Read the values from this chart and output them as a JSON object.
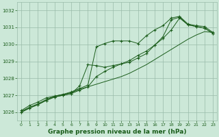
{
  "background_color": "#cce8d8",
  "plot_bg_color": "#cce8d8",
  "grid_color": "#99bbaa",
  "line_color": "#1a5c1a",
  "marker_color": "#1a5c1a",
  "xlabel": "Graphe pression niveau de la mer (hPa)",
  "xlabel_fontsize": 6.5,
  "xlabel_color": "#1a5c1a",
  "xlim": [
    -0.5,
    23.5
  ],
  "ylim": [
    1025.5,
    1032.5
  ],
  "yticks": [
    1026,
    1027,
    1028,
    1029,
    1030,
    1031,
    1032
  ],
  "xticks": [
    0,
    1,
    2,
    3,
    4,
    5,
    6,
    7,
    8,
    9,
    10,
    11,
    12,
    13,
    14,
    15,
    16,
    17,
    18,
    19,
    20,
    21,
    22,
    23
  ],
  "series": [
    {
      "y": [
        1026.1,
        1026.4,
        1026.6,
        1026.85,
        1026.95,
        1027.05,
        1027.2,
        1027.4,
        1027.6,
        1029.85,
        1030.05,
        1030.2,
        1030.2,
        1030.2,
        1030.05,
        1030.5,
        1030.85,
        1031.1,
        1031.55,
        1031.65,
        1031.2,
        1031.1,
        1031.05,
        1030.7
      ],
      "has_markers": true
    },
    {
      "y": [
        1026.05,
        1026.3,
        1026.5,
        1026.75,
        1026.95,
        1027.05,
        1027.15,
        1027.35,
        1027.5,
        1027.65,
        1027.8,
        1027.95,
        1028.1,
        1028.3,
        1028.55,
        1028.8,
        1029.1,
        1029.4,
        1029.7,
        1030.0,
        1030.3,
        1030.55,
        1030.75,
        1030.7
      ],
      "has_markers": false
    },
    {
      "y": [
        1026.0,
        1026.25,
        1026.45,
        1026.7,
        1026.9,
        1027.0,
        1027.1,
        1027.55,
        1028.8,
        1028.75,
        1028.65,
        1028.75,
        1028.85,
        1028.95,
        1029.2,
        1029.45,
        1029.95,
        1030.45,
        1031.45,
        1031.6,
        1031.15,
        1031.05,
        1030.95,
        1030.65
      ],
      "has_markers": true
    },
    {
      "y": [
        1026.0,
        1026.25,
        1026.45,
        1026.7,
        1026.9,
        1027.0,
        1027.1,
        1027.3,
        1027.5,
        1028.1,
        1028.4,
        1028.65,
        1028.85,
        1029.05,
        1029.35,
        1029.6,
        1029.95,
        1030.35,
        1030.85,
        1031.55,
        1031.15,
        1031.05,
        1030.95,
        1030.65
      ],
      "has_markers": true
    }
  ]
}
